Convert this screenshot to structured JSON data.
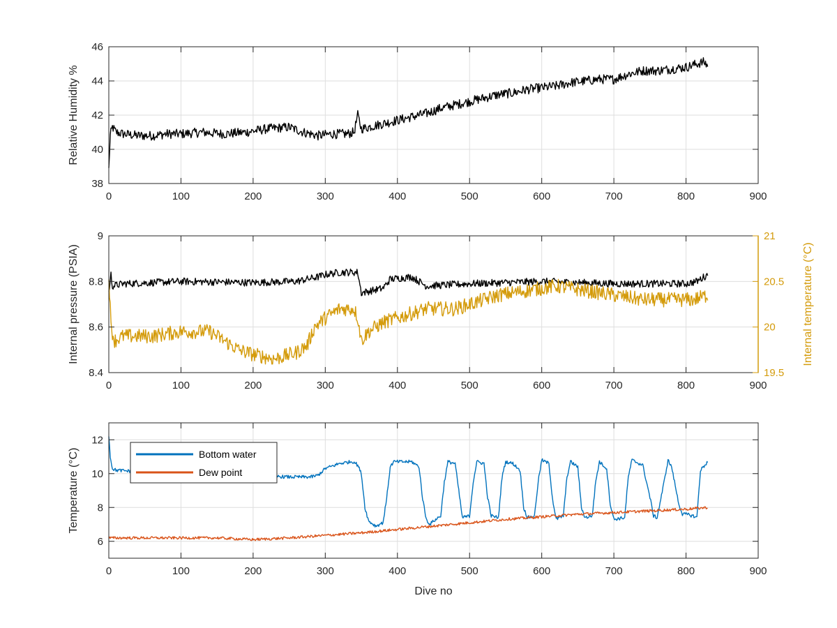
{
  "chart_data": [
    {
      "type": "line",
      "title": "",
      "xlabel": "",
      "ylabel": "Relative Humidity %",
      "xlim": [
        0,
        900
      ],
      "ylim": [
        38,
        46
      ],
      "xticks": [
        "0",
        "100",
        "200",
        "300",
        "400",
        "500",
        "600",
        "700",
        "800",
        "900"
      ],
      "yticks": [
        "38",
        "40",
        "42",
        "44",
        "46"
      ],
      "grid": true,
      "series": [
        {
          "color": "#000000",
          "x": [
            0,
            2,
            5,
            10,
            20,
            40,
            60,
            80,
            100,
            130,
            160,
            190,
            220,
            250,
            270,
            290,
            310,
            330,
            340,
            345,
            350,
            360,
            380,
            400,
            420,
            440,
            460,
            480,
            500,
            520,
            540,
            560,
            580,
            600,
            620,
            640,
            660,
            680,
            700,
            720,
            740,
            760,
            780,
            800,
            815,
            825,
            830
          ],
          "y": [
            38.8,
            40.8,
            41.3,
            41.0,
            40.9,
            40.8,
            40.8,
            40.9,
            40.9,
            41.0,
            40.9,
            41.0,
            41.2,
            41.3,
            41.0,
            40.8,
            40.9,
            40.9,
            41.0,
            42.0,
            41.2,
            41.3,
            41.5,
            41.7,
            41.9,
            42.1,
            42.4,
            42.6,
            42.8,
            43.0,
            43.2,
            43.3,
            43.5,
            43.6,
            43.7,
            43.9,
            44.0,
            44.1,
            44.1,
            44.4,
            44.6,
            44.6,
            44.7,
            44.8,
            45.0,
            45.1,
            44.9
          ],
          "noise": 0.7
        }
      ]
    },
    {
      "type": "line",
      "title": "",
      "xlabel": "",
      "ylabel": "Internal pressure (PSIA)",
      "y2label": "Internal temperature (°C)",
      "xlim": [
        0,
        900
      ],
      "ylim": [
        8.4,
        9.0
      ],
      "y2lim": [
        19.5,
        21
      ],
      "xticks": [
        "0",
        "100",
        "200",
        "300",
        "400",
        "500",
        "600",
        "700",
        "800",
        "900"
      ],
      "yticks": [
        "8.4",
        "8.6",
        "8.8",
        "9"
      ],
      "y2ticks": [
        "19.5",
        "20",
        "20.5",
        "21"
      ],
      "grid": true,
      "series": [
        {
          "axis": "left",
          "color": "#000000",
          "x": [
            0,
            3,
            5,
            20,
            100,
            200,
            260,
            290,
            300,
            320,
            345,
            350,
            380,
            390,
            420,
            430,
            440,
            500,
            600,
            700,
            800,
            815,
            830
          ],
          "y": [
            8.75,
            8.83,
            8.78,
            8.79,
            8.8,
            8.795,
            8.8,
            8.82,
            8.83,
            8.84,
            8.84,
            8.75,
            8.77,
            8.81,
            8.82,
            8.8,
            8.78,
            8.79,
            8.8,
            8.79,
            8.79,
            8.8,
            8.83
          ],
          "noise": 0.04
        },
        {
          "axis": "right",
          "color": "#D49B0B",
          "x": [
            0,
            3,
            8,
            20,
            60,
            100,
            140,
            170,
            180,
            200,
            230,
            260,
            275,
            285,
            300,
            320,
            340,
            345,
            350,
            360,
            380,
            400,
            420,
            440,
            460,
            480,
            500,
            540,
            580,
            620,
            660,
            700,
            740,
            780,
            810,
            830
          ],
          "y": [
            20.6,
            20.0,
            19.85,
            19.9,
            19.9,
            19.95,
            19.95,
            19.8,
            19.75,
            19.7,
            19.65,
            19.72,
            19.8,
            20.0,
            20.1,
            20.2,
            20.2,
            20.1,
            19.85,
            19.95,
            20.05,
            20.1,
            20.15,
            20.2,
            20.2,
            20.2,
            20.25,
            20.35,
            20.4,
            20.45,
            20.4,
            20.35,
            20.3,
            20.3,
            20.3,
            20.35
          ],
          "noise": 0.2
        }
      ]
    },
    {
      "type": "line",
      "title": "",
      "xlabel": "Dive no",
      "ylabel": "Temperature (°C)",
      "xlim": [
        0,
        900
      ],
      "ylim": [
        5,
        13
      ],
      "xticks": [
        "0",
        "100",
        "200",
        "300",
        "400",
        "500",
        "600",
        "700",
        "800",
        "900"
      ],
      "yticks": [
        "6",
        "8",
        "10",
        "12"
      ],
      "grid": true,
      "legend": "top-left",
      "series": [
        {
          "name": "Bottom water",
          "color": "#0072BD",
          "x": [
            0,
            2,
            5,
            10,
            50,
            100,
            150,
            200,
            250,
            280,
            290,
            300,
            320,
            335,
            340,
            345,
            350,
            355,
            360,
            370,
            380,
            385,
            390,
            395,
            400,
            420,
            430,
            435,
            440,
            445,
            450,
            460,
            465,
            470,
            480,
            485,
            490,
            500,
            505,
            510,
            520,
            525,
            530,
            540,
            545,
            550,
            560,
            570,
            575,
            580,
            590,
            595,
            600,
            610,
            615,
            620,
            630,
            635,
            640,
            650,
            655,
            660,
            670,
            675,
            680,
            690,
            695,
            700,
            715,
            720,
            725,
            740,
            750,
            755,
            760,
            770,
            775,
            780,
            790,
            795,
            800,
            810,
            815,
            820,
            830
          ],
          "y": [
            12.3,
            11.0,
            10.3,
            10.2,
            10.1,
            10.0,
            9.9,
            9.9,
            9.8,
            9.8,
            9.9,
            10.3,
            10.6,
            10.7,
            10.7,
            10.5,
            10.0,
            8.0,
            7.2,
            6.9,
            7.1,
            8.5,
            10.4,
            10.7,
            10.7,
            10.7,
            10.4,
            8.5,
            7.3,
            7.0,
            7.2,
            7.5,
            9.5,
            10.7,
            10.6,
            9.0,
            7.4,
            7.5,
            9.5,
            10.7,
            10.6,
            8.6,
            7.5,
            7.4,
            9.8,
            10.7,
            10.6,
            10.2,
            8.0,
            7.4,
            7.5,
            9.5,
            10.8,
            10.6,
            8.5,
            7.3,
            7.5,
            9.8,
            10.7,
            10.4,
            8.0,
            7.4,
            7.5,
            9.6,
            10.7,
            10.3,
            8.2,
            7.3,
            7.4,
            9.8,
            10.8,
            10.5,
            8.6,
            7.5,
            7.4,
            9.6,
            10.8,
            10.4,
            8.2,
            7.6,
            7.6,
            7.5,
            7.4,
            10.2,
            10.7
          ],
          "noise": 0.25
        },
        {
          "name": "Dew point",
          "color": "#D95319",
          "x": [
            0,
            50,
            100,
            150,
            200,
            250,
            300,
            350,
            400,
            450,
            500,
            550,
            600,
            650,
            700,
            750,
            800,
            830
          ],
          "y": [
            6.2,
            6.2,
            6.2,
            6.2,
            6.1,
            6.2,
            6.35,
            6.5,
            6.7,
            6.9,
            7.1,
            7.3,
            7.45,
            7.6,
            7.7,
            7.8,
            7.9,
            8.0
          ],
          "noise": 0.2
        }
      ]
    }
  ]
}
